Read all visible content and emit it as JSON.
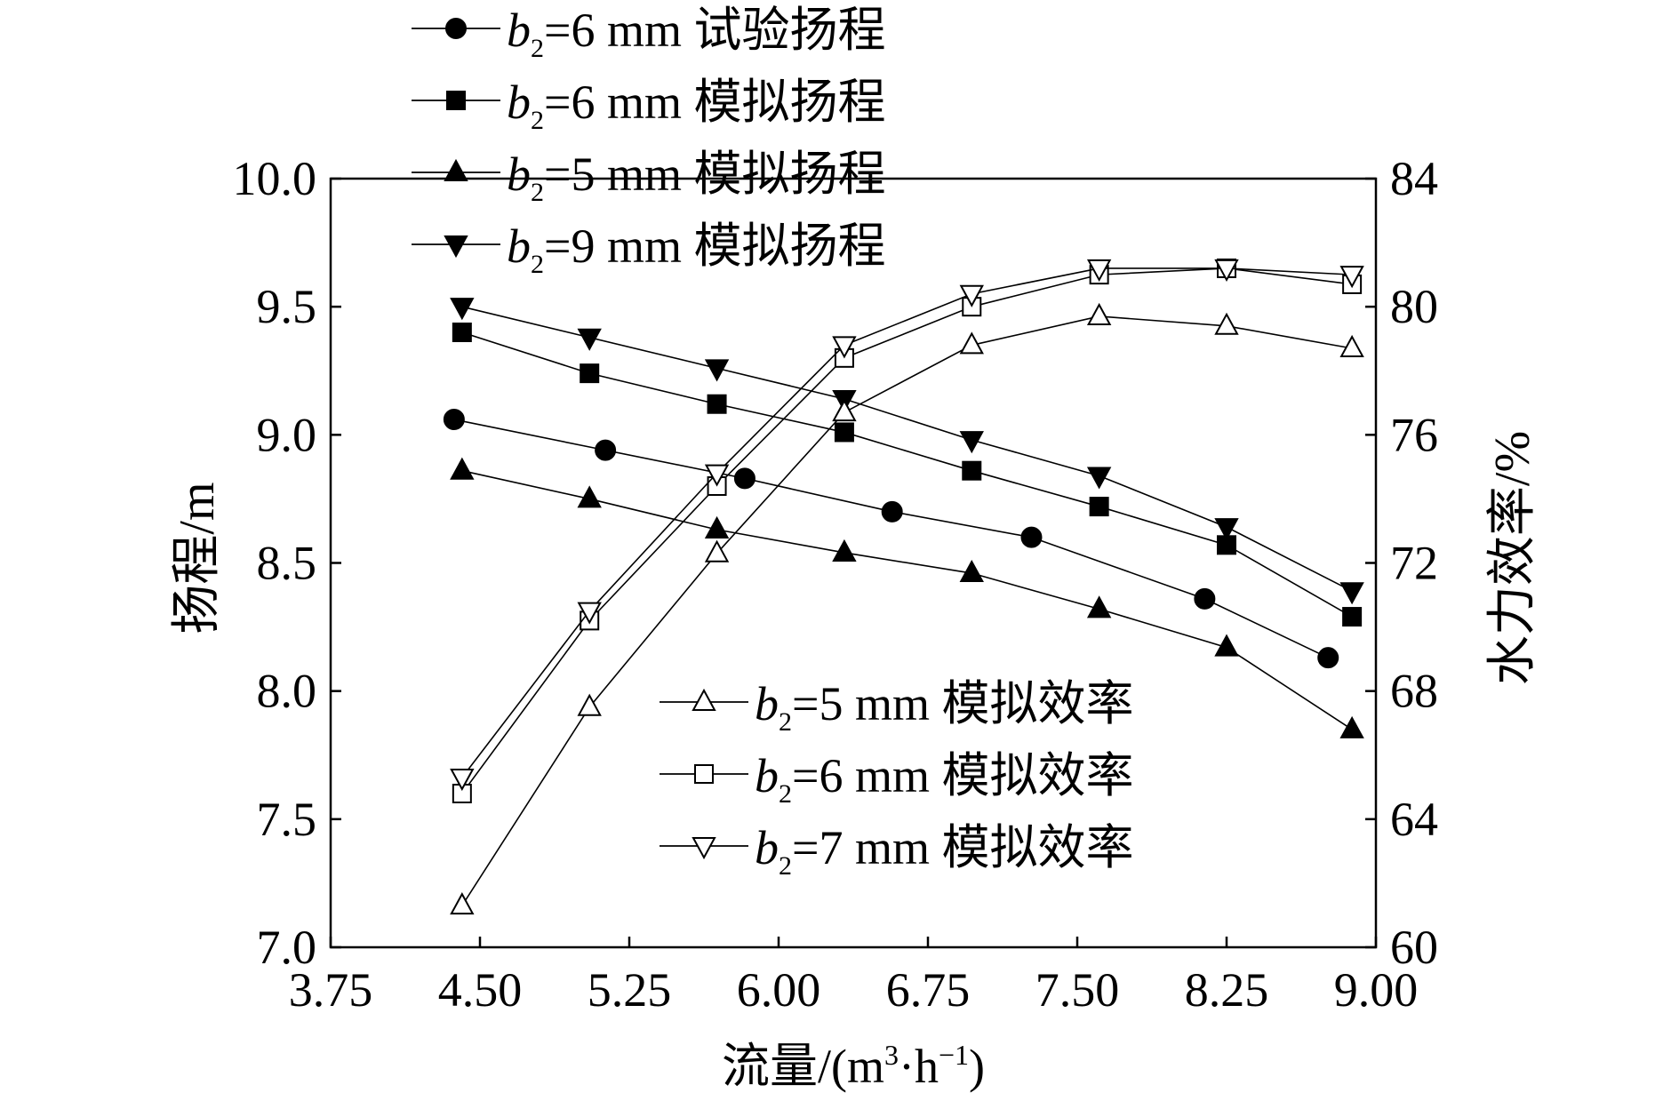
{
  "chart_data": {
    "type": "line",
    "xlabel": "流量/(m³·h⁻¹)",
    "xlabel_main": "流量/(m",
    "xlabel_sup1": "3",
    "xlabel_mid": "·h",
    "xlabel_sup2": "−1",
    "xlabel_end": ")",
    "ylabel": "扬程/m",
    "y2label": "水力效率/%",
    "xlim": [
      3.75,
      9.0
    ],
    "ylim": [
      7.0,
      10.0
    ],
    "y2lim": [
      60,
      84
    ],
    "xticks": [
      "3.75",
      "4.50",
      "5.25",
      "6.00",
      "6.75",
      "7.50",
      "8.25",
      "9.00"
    ],
    "yticks": [
      "7.0",
      "7.5",
      "8.0",
      "8.5",
      "9.0",
      "9.5",
      "10.0"
    ],
    "y2ticks": [
      "60",
      "64",
      "68",
      "72",
      "76",
      "80",
      "84"
    ],
    "grid": false,
    "legend_placement": [
      "top-left",
      "bottom-center"
    ],
    "series": [
      {
        "name": "b2=6 mm 试验扬程",
        "label_prefix": "b",
        "label_sub": "2",
        "label_rest": "=6 mm 试验扬程",
        "axis": "left",
        "marker": "circle-filled",
        "legend": 0,
        "x": [
          4.37,
          5.13,
          5.83,
          6.57,
          7.27,
          8.14,
          8.76
        ],
        "y": [
          9.06,
          8.94,
          8.83,
          8.7,
          8.6,
          8.36,
          8.13
        ]
      },
      {
        "name": "b2=6 mm 模拟扬程",
        "label_prefix": "b",
        "label_sub": "2",
        "label_rest": "=6 mm 模拟扬程",
        "axis": "left",
        "marker": "square-filled",
        "legend": 0,
        "x": [
          4.41,
          5.05,
          5.69,
          6.33,
          6.97,
          7.61,
          8.25,
          8.88
        ],
        "y": [
          9.4,
          9.24,
          9.12,
          9.01,
          8.86,
          8.72,
          8.57,
          8.29
        ]
      },
      {
        "name": "b2=5 mm 模拟扬程",
        "label_prefix": "b",
        "label_sub": "2",
        "label_rest": "=5 mm 模拟扬程",
        "axis": "left",
        "marker": "triangle-up-filled",
        "legend": 0,
        "x": [
          4.41,
          5.05,
          5.69,
          6.33,
          6.97,
          7.61,
          8.25,
          8.88
        ],
        "y": [
          8.86,
          8.75,
          8.63,
          8.54,
          8.46,
          8.32,
          8.17,
          7.85
        ]
      },
      {
        "name": "b2=9 mm 模拟扬程",
        "label_prefix": "b",
        "label_sub": "2",
        "label_rest": "=9 mm 模拟扬程",
        "axis": "left",
        "marker": "triangle-down-filled",
        "legend": 0,
        "x": [
          4.41,
          5.05,
          5.69,
          6.33,
          6.97,
          7.61,
          8.25,
          8.88
        ],
        "y": [
          9.5,
          9.38,
          9.26,
          9.14,
          8.98,
          8.84,
          8.64,
          8.39
        ]
      },
      {
        "name": "b2=5 mm 模拟效率",
        "label_prefix": "b",
        "label_sub": "2",
        "label_rest": "=5 mm 模拟效率",
        "axis": "right",
        "marker": "triangle-up-open",
        "legend": 1,
        "x": [
          4.41,
          5.05,
          5.69,
          6.33,
          6.97,
          7.61,
          8.25,
          8.88
        ],
        "y": [
          61.3,
          67.5,
          72.3,
          76.7,
          78.8,
          79.7,
          79.4,
          78.7
        ]
      },
      {
        "name": "b2=6 mm 模拟效率",
        "label_prefix": "b",
        "label_sub": "2",
        "label_rest": "=6 mm 模拟效率",
        "axis": "right",
        "marker": "square-open",
        "legend": 1,
        "x": [
          4.41,
          5.05,
          5.69,
          6.33,
          6.97,
          7.61,
          8.25,
          8.88
        ],
        "y": [
          64.8,
          70.2,
          74.4,
          78.4,
          80.0,
          81.0,
          81.2,
          80.7
        ]
      },
      {
        "name": "b2=7 mm 模拟效率",
        "label_prefix": "b",
        "label_sub": "2",
        "label_rest": "=7 mm 模拟效率",
        "axis": "right",
        "marker": "triangle-down-open",
        "legend": 1,
        "x": [
          4.41,
          5.05,
          5.69,
          6.33,
          6.97,
          7.61,
          8.25,
          8.88
        ],
        "y": [
          65.3,
          70.5,
          74.8,
          78.8,
          80.4,
          81.2,
          81.2,
          81.0
        ]
      }
    ]
  }
}
